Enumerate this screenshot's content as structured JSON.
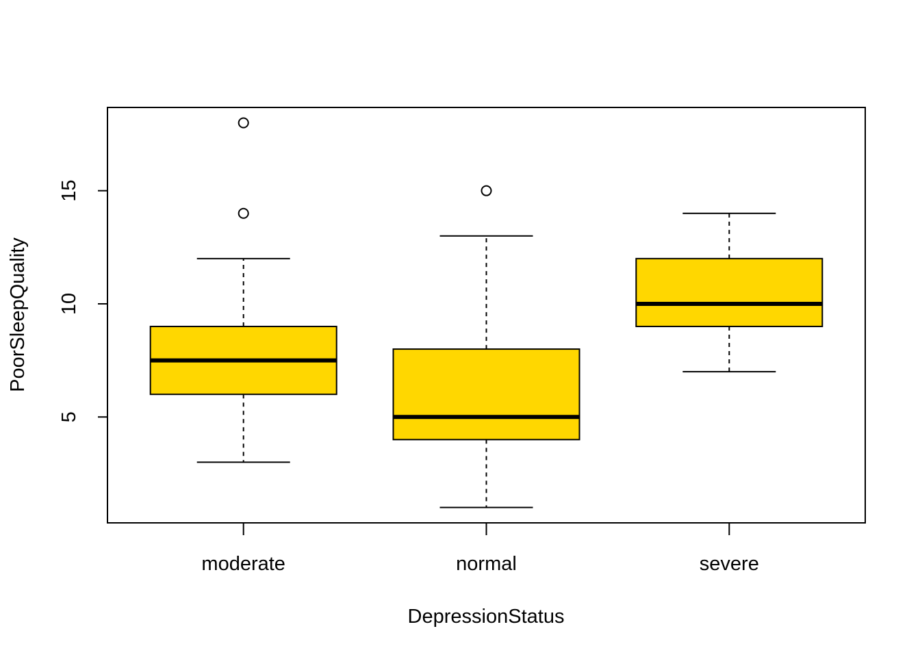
{
  "chart_data": {
    "type": "boxplot",
    "xlabel": "DepressionStatus",
    "ylabel": "PoorSleepQuality",
    "categories": [
      "moderate",
      "normal",
      "severe"
    ],
    "boxes": [
      {
        "category": "moderate",
        "whisker_low": 3,
        "q1": 6,
        "median": 7.5,
        "q3": 9,
        "whisker_high": 12,
        "outliers": [
          14,
          18
        ]
      },
      {
        "category": "normal",
        "whisker_low": 1,
        "q1": 4,
        "median": 5,
        "q3": 8,
        "whisker_high": 13,
        "outliers": [
          15
        ]
      },
      {
        "category": "severe",
        "whisker_low": 7,
        "q1": 9,
        "median": 10,
        "q3": 12,
        "whisker_high": 14,
        "outliers": []
      }
    ],
    "y_ticks": [
      5,
      10,
      15
    ],
    "ylim": [
      0.32,
      18.68
    ],
    "fill_color": "#FFD700",
    "grid": false
  }
}
